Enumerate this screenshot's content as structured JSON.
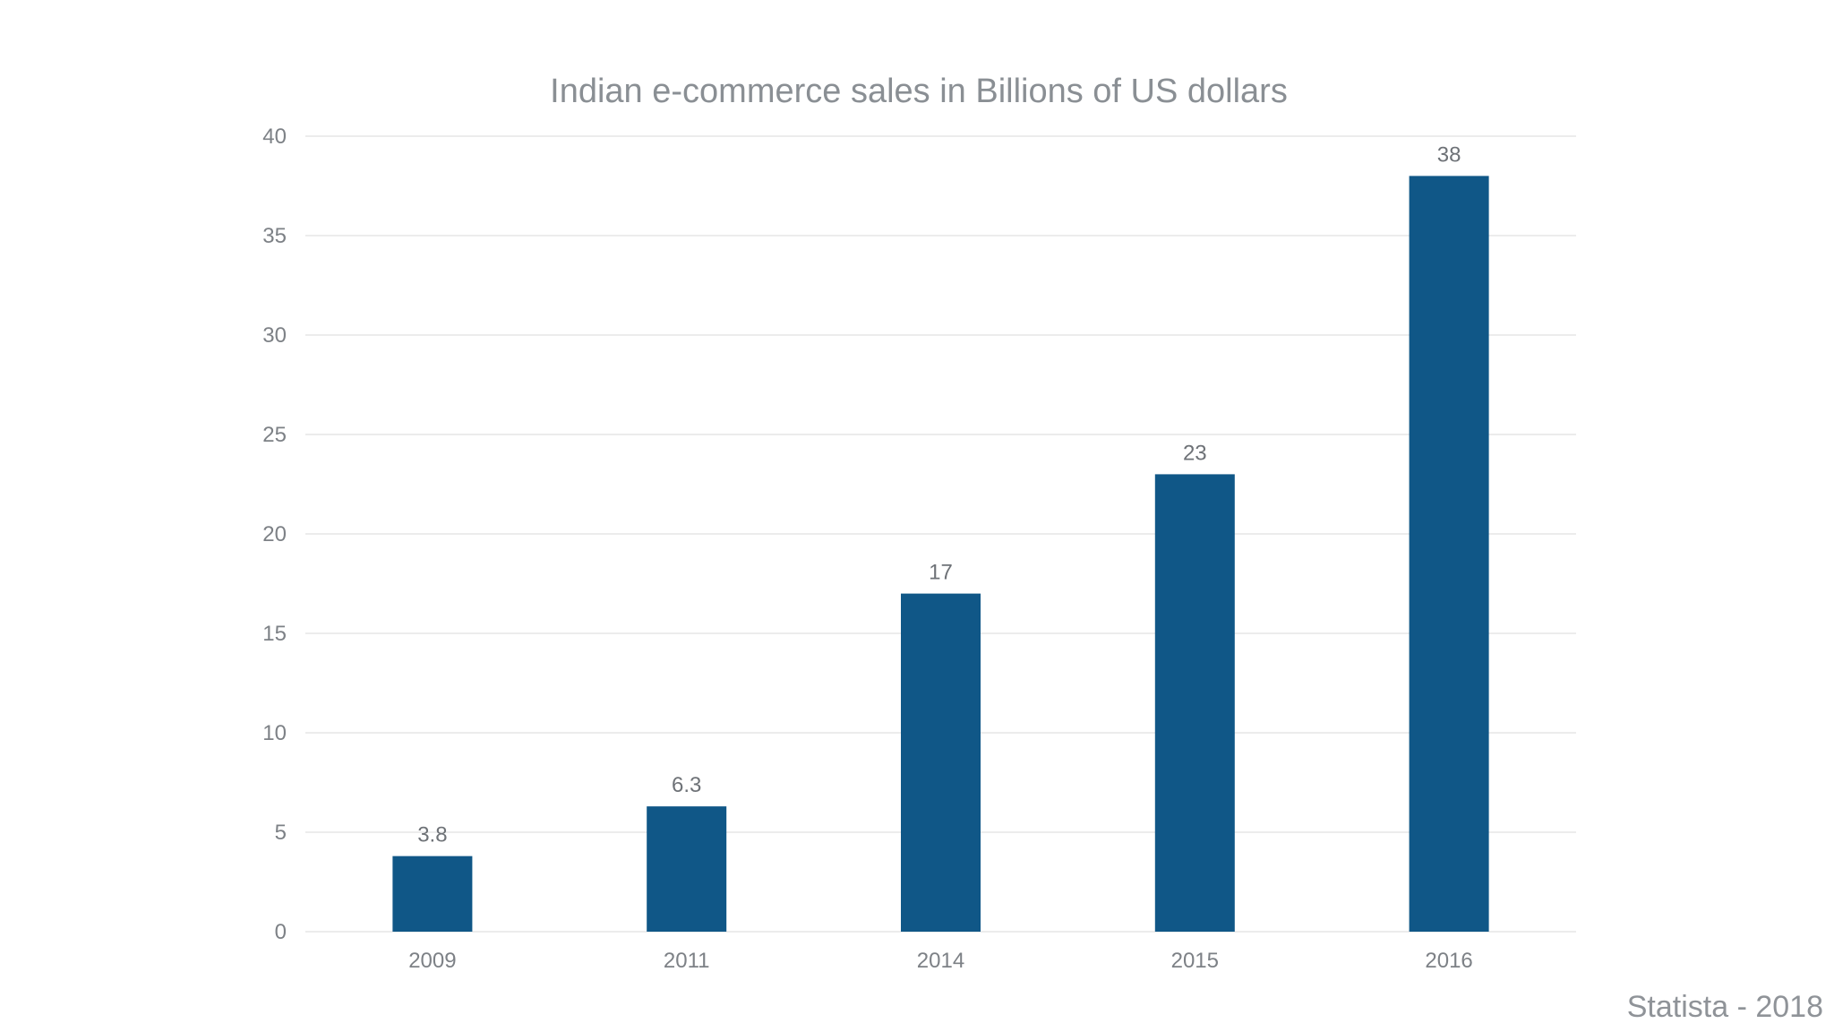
{
  "source_note": "Statista - 2018",
  "colors": {
    "bar": "#105787",
    "gridline": "#e6e6e6",
    "text": "#7d8186"
  },
  "chart_data": {
    "type": "bar",
    "title": "Indian e-commerce sales in Billions of US dollars",
    "xlabel": "",
    "ylabel": "",
    "categories": [
      "2009",
      "2011",
      "2014",
      "2015",
      "2016"
    ],
    "values": [
      3.8,
      6.3,
      17,
      23,
      38
    ],
    "data_labels": [
      "3.8",
      "6.3",
      "17",
      "23",
      "38"
    ],
    "ylim": [
      0,
      40
    ],
    "yticks": [
      0,
      5,
      10,
      15,
      20,
      25,
      30,
      35,
      40
    ],
    "grid": true,
    "legend": "none"
  }
}
